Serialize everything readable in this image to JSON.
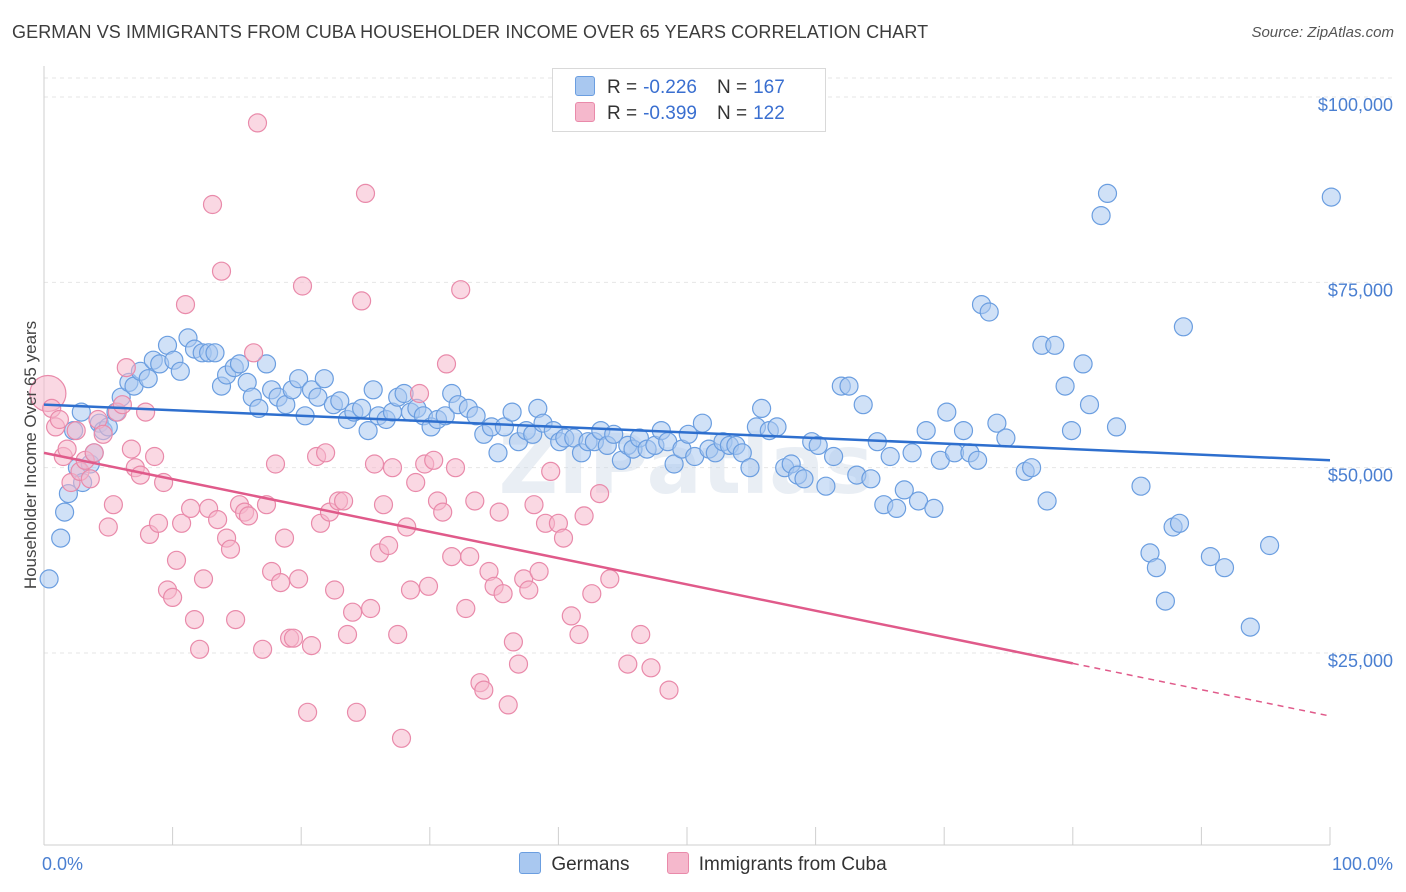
{
  "header": {
    "title": "GERMAN VS IMMIGRANTS FROM CUBA HOUSEHOLDER INCOME OVER 65 YEARS CORRELATION CHART",
    "source": "Source: ZipAtlas.com"
  },
  "watermark": "ZIPatlas",
  "legend": {
    "series": [
      {
        "r_label": "R =",
        "r_value": "-0.226",
        "n_label": "N =",
        "n_value": "167"
      },
      {
        "r_label": "R =",
        "r_value": "-0.399",
        "n_label": "N =",
        "n_value": "122"
      }
    ]
  },
  "colors": {
    "germans_fill": "#a9c8f0",
    "germans_stroke": "#6b9ee0",
    "germans_line": "#2e6fce",
    "cuba_fill": "#f5b8cc",
    "cuba_stroke": "#e98aaa",
    "cuba_line": "#e05a8a",
    "grid": "#e6e6e6",
    "tick_text": "#4a7fd1"
  },
  "chart_data": {
    "type": "scatter",
    "ylabel": "Householder Income Over 65 years",
    "xlim": [
      0,
      100
    ],
    "ylim": [
      0,
      105000
    ],
    "x_tick_labels": [
      {
        "value": 0,
        "label": "0.0%"
      },
      {
        "value": 100,
        "label": "100.0%"
      }
    ],
    "y_ticks": [
      {
        "value": 25000,
        "label": "$25,000"
      },
      {
        "value": 50000,
        "label": "$50,000"
      },
      {
        "value": 75000,
        "label": "$75,000"
      },
      {
        "value": 100000,
        "label": "$100,000"
      }
    ],
    "grid": true,
    "series": [
      {
        "name": "Germans",
        "trend": {
          "x0": 0,
          "y0": 58500,
          "x1": 100,
          "y1": 51000,
          "solid_until": 100
        },
        "points": [
          [
            0.4,
            35000
          ],
          [
            1.3,
            40500
          ],
          [
            1.6,
            44000
          ],
          [
            1.9,
            46500
          ],
          [
            2.3,
            55000
          ],
          [
            2.6,
            50000
          ],
          [
            2.9,
            57500
          ],
          [
            3.0,
            48000
          ],
          [
            3.6,
            50500
          ],
          [
            3.9,
            52000
          ],
          [
            4.3,
            56000
          ],
          [
            4.6,
            55000
          ],
          [
            5.0,
            55500
          ],
          [
            5.6,
            57500
          ],
          [
            6.0,
            59500
          ],
          [
            6.6,
            61500
          ],
          [
            7.0,
            61000
          ],
          [
            7.5,
            63000
          ],
          [
            8.1,
            62000
          ],
          [
            8.5,
            64500
          ],
          [
            9.0,
            64000
          ],
          [
            9.6,
            66500
          ],
          [
            10.1,
            64500
          ],
          [
            10.6,
            63000
          ],
          [
            11.2,
            67500
          ],
          [
            11.7,
            66000
          ],
          [
            12.3,
            65500
          ],
          [
            12.8,
            65500
          ],
          [
            13.3,
            65500
          ],
          [
            13.8,
            61000
          ],
          [
            14.2,
            62500
          ],
          [
            14.8,
            63500
          ],
          [
            15.2,
            64000
          ],
          [
            15.8,
            61500
          ],
          [
            16.2,
            59500
          ],
          [
            16.7,
            58000
          ],
          [
            17.3,
            64000
          ],
          [
            17.7,
            60500
          ],
          [
            18.2,
            59500
          ],
          [
            18.8,
            58500
          ],
          [
            19.3,
            60500
          ],
          [
            19.8,
            62000
          ],
          [
            20.3,
            57000
          ],
          [
            20.8,
            60500
          ],
          [
            21.3,
            59500
          ],
          [
            21.8,
            62000
          ],
          [
            22.5,
            58500
          ],
          [
            23.0,
            59000
          ],
          [
            23.6,
            56500
          ],
          [
            24.1,
            57500
          ],
          [
            24.7,
            58000
          ],
          [
            25.2,
            55000
          ],
          [
            25.6,
            60500
          ],
          [
            26.0,
            57000
          ],
          [
            26.6,
            56500
          ],
          [
            27.1,
            57500
          ],
          [
            27.5,
            59500
          ],
          [
            28.0,
            60000
          ],
          [
            28.5,
            57500
          ],
          [
            29.0,
            58000
          ],
          [
            29.5,
            57000
          ],
          [
            30.1,
            55500
          ],
          [
            30.6,
            56500
          ],
          [
            31.2,
            57000
          ],
          [
            31.7,
            60000
          ],
          [
            32.2,
            58500
          ],
          [
            33.0,
            58000
          ],
          [
            33.6,
            57000
          ],
          [
            34.2,
            54500
          ],
          [
            34.8,
            55500
          ],
          [
            35.3,
            52000
          ],
          [
            35.8,
            55500
          ],
          [
            36.4,
            57500
          ],
          [
            36.9,
            53500
          ],
          [
            37.5,
            55000
          ],
          [
            38.0,
            54500
          ],
          [
            38.4,
            58000
          ],
          [
            38.8,
            56000
          ],
          [
            39.6,
            55000
          ],
          [
            40.1,
            53500
          ],
          [
            40.5,
            54000
          ],
          [
            41.2,
            54000
          ],
          [
            41.8,
            52000
          ],
          [
            42.3,
            53500
          ],
          [
            42.8,
            53500
          ],
          [
            43.3,
            55000
          ],
          [
            43.8,
            53000
          ],
          [
            44.3,
            54500
          ],
          [
            44.9,
            51000
          ],
          [
            45.4,
            53000
          ],
          [
            45.8,
            52500
          ],
          [
            46.3,
            54000
          ],
          [
            46.9,
            52500
          ],
          [
            47.5,
            53000
          ],
          [
            48.0,
            55000
          ],
          [
            48.5,
            53500
          ],
          [
            49.0,
            50500
          ],
          [
            49.6,
            52500
          ],
          [
            50.1,
            54500
          ],
          [
            50.6,
            51500
          ],
          [
            51.2,
            56000
          ],
          [
            51.7,
            52500
          ],
          [
            52.2,
            52000
          ],
          [
            52.8,
            53500
          ],
          [
            53.3,
            53000
          ],
          [
            53.8,
            53000
          ],
          [
            54.3,
            52000
          ],
          [
            54.9,
            50000
          ],
          [
            55.4,
            55500
          ],
          [
            55.8,
            58000
          ],
          [
            56.4,
            55000
          ],
          [
            57.0,
            55500
          ],
          [
            57.6,
            50000
          ],
          [
            58.1,
            50500
          ],
          [
            58.6,
            49000
          ],
          [
            59.1,
            48500
          ],
          [
            59.7,
            53500
          ],
          [
            60.2,
            53000
          ],
          [
            60.8,
            47500
          ],
          [
            61.4,
            51500
          ],
          [
            62.0,
            61000
          ],
          [
            62.6,
            61000
          ],
          [
            63.2,
            49000
          ],
          [
            63.7,
            58500
          ],
          [
            64.3,
            48500
          ],
          [
            64.8,
            53500
          ],
          [
            65.3,
            45000
          ],
          [
            65.8,
            51500
          ],
          [
            66.3,
            44500
          ],
          [
            66.9,
            47000
          ],
          [
            67.5,
            52000
          ],
          [
            68.0,
            45500
          ],
          [
            68.6,
            55000
          ],
          [
            69.2,
            44500
          ],
          [
            69.7,
            51000
          ],
          [
            70.2,
            57500
          ],
          [
            70.8,
            52000
          ],
          [
            71.5,
            55000
          ],
          [
            72.0,
            52000
          ],
          [
            72.6,
            51000
          ],
          [
            72.9,
            72000
          ],
          [
            73.5,
            71000
          ],
          [
            74.1,
            56000
          ],
          [
            74.8,
            54000
          ],
          [
            76.3,
            49500
          ],
          [
            76.8,
            50000
          ],
          [
            77.6,
            66500
          ],
          [
            78.0,
            45500
          ],
          [
            78.6,
            66500
          ],
          [
            79.4,
            61000
          ],
          [
            79.9,
            55000
          ],
          [
            80.8,
            64000
          ],
          [
            81.3,
            58500
          ],
          [
            82.2,
            84000
          ],
          [
            82.7,
            87000
          ],
          [
            83.4,
            55500
          ],
          [
            85.3,
            47500
          ],
          [
            86.0,
            38500
          ],
          [
            86.5,
            36500
          ],
          [
            87.2,
            32000
          ],
          [
            87.8,
            42000
          ],
          [
            88.3,
            42500
          ],
          [
            88.6,
            69000
          ],
          [
            90.7,
            38000
          ],
          [
            91.8,
            36500
          ],
          [
            93.8,
            28500
          ],
          [
            95.3,
            39500
          ],
          [
            100.1,
            86500
          ]
        ]
      },
      {
        "name": "Immigrants from Cuba",
        "trend": {
          "x0": 0,
          "y0": 52000,
          "x1": 100,
          "y1": 16500,
          "solid_until": 80
        },
        "points": [
          [
            0.3,
            60000
          ],
          [
            0.6,
            58000
          ],
          [
            0.9,
            55500
          ],
          [
            1.2,
            56500
          ],
          [
            1.5,
            51500
          ],
          [
            1.8,
            52500
          ],
          [
            2.1,
            48000
          ],
          [
            2.5,
            55000
          ],
          [
            2.8,
            49500
          ],
          [
            3.2,
            51000
          ],
          [
            3.6,
            48500
          ],
          [
            3.9,
            52000
          ],
          [
            4.2,
            56500
          ],
          [
            4.6,
            54500
          ],
          [
            5.0,
            42000
          ],
          [
            5.4,
            45000
          ],
          [
            5.7,
            57500
          ],
          [
            6.1,
            58500
          ],
          [
            6.4,
            63500
          ],
          [
            6.8,
            52500
          ],
          [
            7.1,
            50000
          ],
          [
            7.5,
            49000
          ],
          [
            7.9,
            57500
          ],
          [
            8.2,
            41000
          ],
          [
            8.6,
            51500
          ],
          [
            8.9,
            42500
          ],
          [
            9.3,
            48000
          ],
          [
            9.6,
            33500
          ],
          [
            10.0,
            32500
          ],
          [
            10.3,
            37500
          ],
          [
            10.7,
            42500
          ],
          [
            11.0,
            72000
          ],
          [
            11.4,
            44500
          ],
          [
            11.7,
            29500
          ],
          [
            12.1,
            25500
          ],
          [
            12.4,
            35000
          ],
          [
            12.8,
            44500
          ],
          [
            13.1,
            85500
          ],
          [
            13.5,
            43000
          ],
          [
            13.8,
            76500
          ],
          [
            14.2,
            40500
          ],
          [
            14.5,
            39000
          ],
          [
            14.9,
            29500
          ],
          [
            15.2,
            45000
          ],
          [
            15.6,
            44000
          ],
          [
            15.9,
            43500
          ],
          [
            16.3,
            65500
          ],
          [
            16.6,
            96500
          ],
          [
            17.0,
            25500
          ],
          [
            17.3,
            45000
          ],
          [
            17.7,
            36000
          ],
          [
            18.0,
            50500
          ],
          [
            18.4,
            34500
          ],
          [
            18.7,
            40500
          ],
          [
            19.1,
            27000
          ],
          [
            19.4,
            27000
          ],
          [
            19.8,
            35000
          ],
          [
            20.1,
            74500
          ],
          [
            20.5,
            17000
          ],
          [
            20.8,
            26000
          ],
          [
            21.2,
            51500
          ],
          [
            21.5,
            42500
          ],
          [
            21.9,
            52000
          ],
          [
            22.2,
            44000
          ],
          [
            22.6,
            33500
          ],
          [
            22.9,
            45500
          ],
          [
            23.3,
            45500
          ],
          [
            23.6,
            27500
          ],
          [
            24.0,
            30500
          ],
          [
            24.3,
            17000
          ],
          [
            24.7,
            72500
          ],
          [
            25.0,
            87000
          ],
          [
            25.4,
            31000
          ],
          [
            25.7,
            50500
          ],
          [
            26.1,
            38500
          ],
          [
            26.4,
            45000
          ],
          [
            26.8,
            39500
          ],
          [
            27.1,
            50000
          ],
          [
            27.5,
            27500
          ],
          [
            27.8,
            13500
          ],
          [
            28.2,
            42000
          ],
          [
            28.5,
            33500
          ],
          [
            28.9,
            48000
          ],
          [
            29.2,
            60000
          ],
          [
            29.6,
            50500
          ],
          [
            29.9,
            34000
          ],
          [
            30.3,
            51000
          ],
          [
            30.6,
            45500
          ],
          [
            31.0,
            44000
          ],
          [
            31.3,
            64000
          ],
          [
            31.7,
            38000
          ],
          [
            32.0,
            50000
          ],
          [
            32.4,
            74000
          ],
          [
            32.8,
            31000
          ],
          [
            33.1,
            38000
          ],
          [
            33.5,
            45500
          ],
          [
            33.9,
            21000
          ],
          [
            34.2,
            20000
          ],
          [
            34.6,
            36000
          ],
          [
            35.0,
            34000
          ],
          [
            35.4,
            44000
          ],
          [
            35.7,
            33000
          ],
          [
            36.1,
            18000
          ],
          [
            36.5,
            26500
          ],
          [
            36.9,
            23500
          ],
          [
            37.3,
            35000
          ],
          [
            37.7,
            33500
          ],
          [
            38.1,
            45000
          ],
          [
            38.5,
            36000
          ],
          [
            39.0,
            42500
          ],
          [
            39.4,
            49500
          ],
          [
            40.0,
            42500
          ],
          [
            40.4,
            40500
          ],
          [
            41.0,
            30000
          ],
          [
            41.6,
            27500
          ],
          [
            42.0,
            43500
          ],
          [
            42.6,
            33000
          ],
          [
            43.2,
            46500
          ],
          [
            44.0,
            35000
          ],
          [
            45.4,
            23500
          ],
          [
            46.4,
            27500
          ],
          [
            47.2,
            23000
          ],
          [
            48.6,
            20000
          ]
        ]
      }
    ]
  }
}
